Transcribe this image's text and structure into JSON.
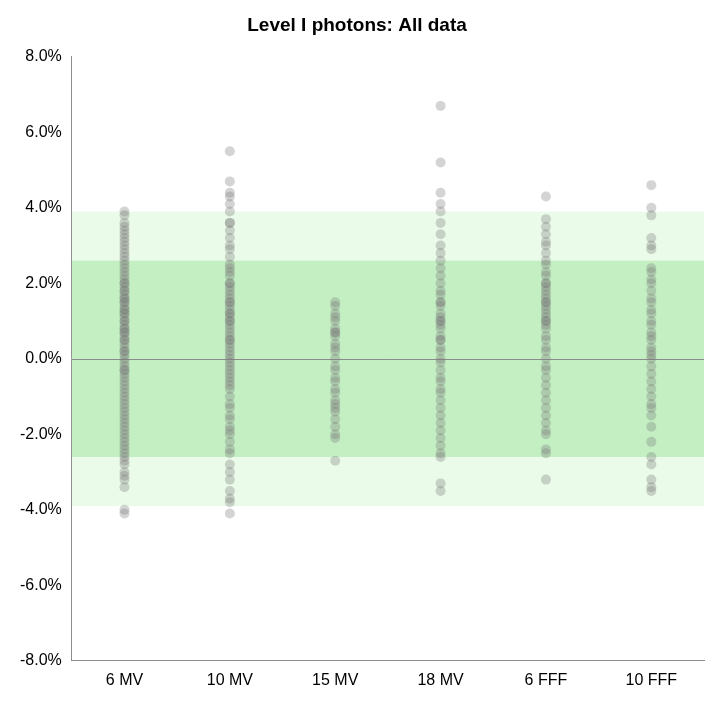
{
  "chart_data": {
    "type": "strip",
    "title": "Level I photons: All data",
    "categories": [
      "6 MV",
      "10 MV",
      "15 MV",
      "18 MV",
      "6 FFF",
      "10 FFF"
    ],
    "values": [
      [
        3.9,
        3.8,
        3.6,
        3.5,
        3.4,
        3.3,
        3.2,
        3.1,
        3.0,
        2.9,
        2.8,
        2.7,
        2.6,
        2.5,
        2.4,
        2.3,
        2.2,
        2.1,
        2.0,
        1.9,
        1.8,
        1.7,
        1.6,
        1.5,
        1.4,
        1.3,
        1.2,
        1.1,
        1.0,
        0.9,
        0.8,
        0.7,
        0.6,
        0.5,
        0.4,
        0.3,
        0.2,
        0.1,
        0.0,
        -0.1,
        -0.2,
        -0.3,
        -0.4,
        -0.5,
        -0.6,
        -0.7,
        -0.8,
        -0.9,
        -1.0,
        -1.1,
        -1.2,
        -1.3,
        -1.4,
        -1.5,
        -1.6,
        -1.7,
        -1.8,
        -1.9,
        -2.0,
        -2.1,
        -2.2,
        -2.3,
        -2.4,
        -2.5,
        -2.6,
        -2.7,
        -2.8,
        -3.0,
        -3.1,
        -3.2,
        -3.4,
        -4.0,
        -4.1,
        1.0,
        1.2,
        1.5,
        0.8,
        0.5,
        2.0,
        1.8,
        0.2,
        -0.3,
        1.3,
        0.7,
        1.6
      ],
      [
        5.5,
        4.7,
        4.4,
        4.3,
        4.1,
        3.9,
        3.6,
        3.6,
        3.4,
        3.2,
        3.0,
        2.9,
        2.7,
        2.5,
        2.4,
        2.3,
        2.2,
        2.0,
        1.9,
        1.8,
        1.7,
        1.6,
        1.5,
        1.4,
        1.3,
        1.2,
        1.1,
        1.0,
        0.9,
        0.8,
        0.7,
        0.6,
        0.5,
        0.4,
        0.3,
        0.2,
        0.1,
        0.0,
        -0.1,
        -0.2,
        -0.3,
        -0.4,
        -0.5,
        -0.6,
        -0.7,
        -0.8,
        -1.0,
        -1.2,
        -1.3,
        -1.5,
        -1.6,
        -1.8,
        -1.9,
        -2.0,
        -2.2,
        -2.4,
        -2.5,
        -2.8,
        -3.0,
        -3.2,
        -3.5,
        -3.7,
        -3.8,
        -4.1,
        1.0,
        1.5,
        0.5,
        2.0,
        1.2
      ],
      [
        1.5,
        1.4,
        1.2,
        1.1,
        1.0,
        0.8,
        0.7,
        0.7,
        0.6,
        0.4,
        0.3,
        0.2,
        0.0,
        -0.2,
        -0.3,
        -0.5,
        -0.6,
        -0.8,
        -0.9,
        -1.1,
        -1.2,
        -1.3,
        -1.4,
        -1.6,
        -1.8,
        -2.0,
        -2.1,
        -2.7
      ],
      [
        6.7,
        5.2,
        4.4,
        4.1,
        3.9,
        3.6,
        3.3,
        3.0,
        2.8,
        2.6,
        2.4,
        2.2,
        2.0,
        1.8,
        1.7,
        1.5,
        1.4,
        1.2,
        1.1,
        1.0,
        0.9,
        0.8,
        0.6,
        0.5,
        0.3,
        0.2,
        0.0,
        -0.1,
        -0.3,
        -0.5,
        -0.6,
        -0.8,
        -0.9,
        -1.1,
        -1.3,
        -1.5,
        -1.7,
        -1.9,
        -2.1,
        -2.3,
        -2.5,
        -2.6,
        -3.3,
        -3.5,
        1.0,
        0.5,
        1.5
      ],
      [
        4.3,
        3.7,
        3.5,
        3.3,
        3.1,
        3.0,
        2.8,
        2.6,
        2.5,
        2.3,
        2.2,
        2.0,
        1.9,
        1.8,
        1.7,
        1.6,
        1.5,
        1.4,
        1.3,
        1.2,
        1.1,
        1.0,
        0.9,
        0.8,
        0.6,
        0.5,
        0.3,
        0.2,
        0.0,
        -0.2,
        -0.3,
        -0.5,
        -0.7,
        -0.9,
        -1.1,
        -1.3,
        -1.5,
        -1.7,
        -1.9,
        -2.0,
        -2.4,
        -2.5,
        -3.2,
        1.5,
        2.0,
        1.0
      ],
      [
        4.6,
        4.0,
        3.8,
        3.2,
        3.0,
        2.9,
        2.4,
        2.3,
        2.1,
        2.0,
        1.8,
        1.6,
        1.5,
        1.3,
        1.2,
        1.0,
        0.9,
        0.7,
        0.6,
        0.5,
        0.3,
        0.2,
        0.1,
        0.0,
        -0.2,
        -0.4,
        -0.6,
        -0.8,
        -1.0,
        -1.2,
        -1.3,
        -1.5,
        -1.8,
        -2.2,
        -2.6,
        -2.8,
        -3.2,
        -3.4,
        -3.5
      ]
    ],
    "color": "#7a7a7a",
    "marker": "circle",
    "bands": [
      {
        "from": -3.9,
        "to": 3.9,
        "color": "#ebfbe9"
      },
      {
        "from": -2.6,
        "to": 2.6,
        "color": "#c3efc3"
      }
    ],
    "reference_line": 0,
    "ylim": [
      -8,
      8
    ],
    "yticks": [
      {
        "value": -8,
        "label": "-8.0%"
      },
      {
        "value": -6,
        "label": "-6.0%"
      },
      {
        "value": -4,
        "label": "-4.0%"
      },
      {
        "value": -2,
        "label": "-2.0%"
      },
      {
        "value": 0,
        "label": "0.0%"
      },
      {
        "value": 2,
        "label": "2.0%"
      },
      {
        "value": 4,
        "label": "4.0%"
      },
      {
        "value": 6,
        "label": "6.0%"
      },
      {
        "value": 8,
        "label": "8.0%"
      }
    ],
    "grid": false
  }
}
